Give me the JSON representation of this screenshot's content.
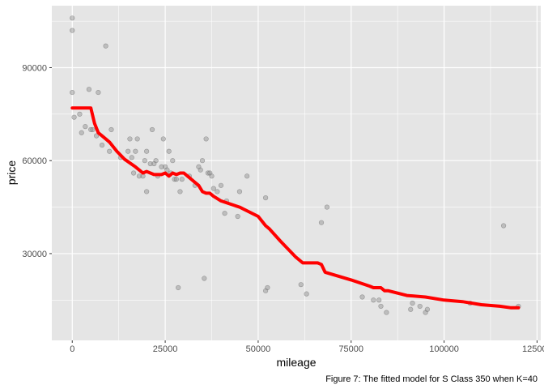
{
  "chart_data": {
    "type": "scatter",
    "xlabel": "mileage",
    "ylabel": "price",
    "caption": "Figure 7: The fitted model for S Class 350 when K=40",
    "xlim": [
      -5500,
      126000
    ],
    "ylim": [
      2000,
      110000
    ],
    "x_ticks": [
      0,
      25000,
      50000,
      75000,
      100000,
      125000
    ],
    "x_tick_labels": [
      "0",
      "25000",
      "50000",
      "75000",
      "100000",
      "125000"
    ],
    "y_ticks": [
      30000,
      60000,
      90000
    ],
    "y_tick_labels": [
      "30000",
      "60000",
      "90000"
    ],
    "grid": true,
    "colors": {
      "panel": "#e5e5e5",
      "grid": "#ffffff",
      "points": "#8c8c8c",
      "fit_line": "#ff0000"
    },
    "series": [
      {
        "type": "scatter",
        "points": [
          [
            0,
            106000
          ],
          [
            0,
            102000
          ],
          [
            0,
            82000
          ],
          [
            500,
            74000
          ],
          [
            2000,
            75000
          ],
          [
            2500,
            69000
          ],
          [
            3500,
            71000
          ],
          [
            4500,
            83000
          ],
          [
            5000,
            70000
          ],
          [
            5500,
            70000
          ],
          [
            6500,
            68000
          ],
          [
            7000,
            82000
          ],
          [
            8000,
            65000
          ],
          [
            9000,
            97000
          ],
          [
            10000,
            63000
          ],
          [
            10500,
            70000
          ],
          [
            13000,
            61000
          ],
          [
            15000,
            63000
          ],
          [
            15500,
            67000
          ],
          [
            16000,
            61000
          ],
          [
            16500,
            56000
          ],
          [
            17000,
            63000
          ],
          [
            17500,
            67000
          ],
          [
            18000,
            55000
          ],
          [
            19000,
            55000
          ],
          [
            19500,
            60000
          ],
          [
            20000,
            63000
          ],
          [
            20000,
            50000
          ],
          [
            21000,
            59000
          ],
          [
            21500,
            70000
          ],
          [
            22500,
            60000
          ],
          [
            22000,
            59000
          ],
          [
            23000,
            55000
          ],
          [
            24000,
            58000
          ],
          [
            24500,
            67000
          ],
          [
            25000,
            58000
          ],
          [
            25500,
            57000
          ],
          [
            26000,
            63000
          ],
          [
            26500,
            56000
          ],
          [
            27000,
            60000
          ],
          [
            27500,
            54000
          ],
          [
            28000,
            54000
          ],
          [
            28500,
            19000
          ],
          [
            29000,
            50000
          ],
          [
            29500,
            54000
          ],
          [
            31500,
            55000
          ],
          [
            33000,
            52000
          ],
          [
            34000,
            58000
          ],
          [
            34500,
            57000
          ],
          [
            35000,
            60000
          ],
          [
            35500,
            22000
          ],
          [
            36000,
            67000
          ],
          [
            36500,
            56000
          ],
          [
            37000,
            56000
          ],
          [
            37500,
            55000
          ],
          [
            38000,
            51000
          ],
          [
            39000,
            50000
          ],
          [
            40000,
            52000
          ],
          [
            41000,
            43000
          ],
          [
            41500,
            47000
          ],
          [
            44500,
            42000
          ],
          [
            45000,
            50000
          ],
          [
            47000,
            55000
          ],
          [
            52000,
            48000
          ],
          [
            52000,
            18000
          ],
          [
            52500,
            19000
          ],
          [
            61500,
            20000
          ],
          [
            63000,
            17000
          ],
          [
            67000,
            40000
          ],
          [
            68500,
            45000
          ],
          [
            78000,
            16000
          ],
          [
            81000,
            15000
          ],
          [
            82500,
            15000
          ],
          [
            83000,
            13000
          ],
          [
            84500,
            11000
          ],
          [
            91000,
            12000
          ],
          [
            91500,
            14000
          ],
          [
            93500,
            13000
          ],
          [
            95000,
            11000
          ],
          [
            95500,
            12000
          ],
          [
            107000,
            14000
          ],
          [
            116000,
            39000
          ],
          [
            120000,
            13000
          ]
        ]
      },
      {
        "type": "line",
        "points": [
          [
            0,
            77000
          ],
          [
            5000,
            77000
          ],
          [
            6000,
            72000
          ],
          [
            7000,
            69000
          ],
          [
            8000,
            68000
          ],
          [
            10000,
            66000
          ],
          [
            12000,
            63000
          ],
          [
            14000,
            60500
          ],
          [
            17000,
            58000
          ],
          [
            18000,
            57000
          ],
          [
            19000,
            56000
          ],
          [
            20000,
            56500
          ],
          [
            21000,
            56000
          ],
          [
            22000,
            55500
          ],
          [
            24000,
            55500
          ],
          [
            25000,
            56000
          ],
          [
            26000,
            55000
          ],
          [
            27000,
            56000
          ],
          [
            28000,
            55500
          ],
          [
            29000,
            56000
          ],
          [
            30000,
            56000
          ],
          [
            31000,
            55000
          ],
          [
            33000,
            53000
          ],
          [
            34000,
            52000
          ],
          [
            35000,
            50000
          ],
          [
            36000,
            49500
          ],
          [
            37000,
            49500
          ],
          [
            38000,
            48500
          ],
          [
            40000,
            47000
          ],
          [
            45000,
            45000
          ],
          [
            50000,
            42000
          ],
          [
            52000,
            39000
          ],
          [
            53000,
            38000
          ],
          [
            56000,
            34000
          ],
          [
            60000,
            29000
          ],
          [
            62000,
            27000
          ],
          [
            65000,
            27000
          ],
          [
            66000,
            27000
          ],
          [
            67000,
            26500
          ],
          [
            68000,
            24000
          ],
          [
            75000,
            21500
          ],
          [
            80000,
            19500
          ],
          [
            81000,
            19000
          ],
          [
            82000,
            19000
          ],
          [
            83000,
            19000
          ],
          [
            84000,
            18000
          ],
          [
            85000,
            18000
          ],
          [
            90000,
            16500
          ],
          [
            95000,
            16000
          ],
          [
            100000,
            15000
          ],
          [
            105000,
            14500
          ],
          [
            110000,
            13500
          ],
          [
            115000,
            13000
          ],
          [
            118000,
            12500
          ],
          [
            120000,
            12500
          ]
        ]
      }
    ]
  }
}
